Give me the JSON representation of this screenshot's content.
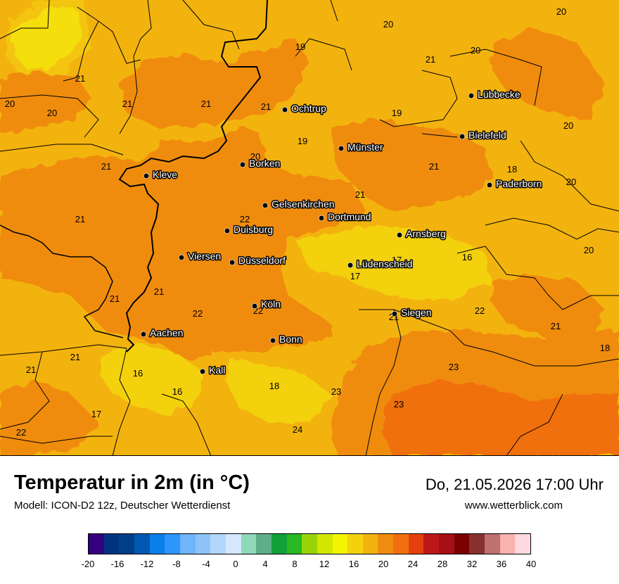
{
  "map": {
    "cities": [
      {
        "name": "Ochtrup"
      },
      {
        "name": "Lübbecke"
      },
      {
        "name": "Bielefeld"
      },
      {
        "name": "Münster"
      },
      {
        "name": "Borken"
      },
      {
        "name": "Kleve"
      },
      {
        "name": "Paderborn"
      },
      {
        "name": "Gelsenkirchen"
      },
      {
        "name": "Dortmund"
      },
      {
        "name": "Duisburg"
      },
      {
        "name": "Arnsberg"
      },
      {
        "name": "Viersen"
      },
      {
        "name": "Düsseldorf"
      },
      {
        "name": "Lüdenscheid"
      },
      {
        "name": "Köln"
      },
      {
        "name": "Siegen"
      },
      {
        "name": "Aachen"
      },
      {
        "name": "Bonn"
      },
      {
        "name": "Kall"
      }
    ],
    "temperature_labels": [
      "20",
      "20",
      "19",
      "20",
      "21",
      "21",
      "21",
      "20",
      "21",
      "20",
      "19",
      "19",
      "21",
      "21",
      "21",
      "20",
      "18",
      "20",
      "21",
      "22",
      "21",
      "20",
      "17",
      "16",
      "20",
      "17",
      "21",
      "21",
      "21",
      "22",
      "22",
      "21",
      "21",
      "22",
      "21",
      "18",
      "16",
      "21",
      "16",
      "18",
      "23",
      "23",
      "17",
      "23",
      "22",
      "24"
    ]
  },
  "footer": {
    "title": "Temperatur in 2m (in °C)",
    "model": "Modell: ICON-D2 12z, Deutscher Wetterdienst",
    "datetime": "Do, 21.05.2026 17:00 Uhr",
    "website": "www.wetterblick.com"
  },
  "colorbar": {
    "colors": [
      "#33007f",
      "#00337f",
      "#003f8a",
      "#0058b0",
      "#0a7fea",
      "#2e95fb",
      "#6fb5fb",
      "#8ec3f9",
      "#b3d6fb",
      "#d6e7fd",
      "#8fd9bb",
      "#5fae8a",
      "#12a03a",
      "#28b821",
      "#99d40a",
      "#d2e600",
      "#f4f400",
      "#f3d10c",
      "#f3b30e",
      "#f08c0f",
      "#f07010",
      "#e5400c",
      "#bd1818",
      "#a60f15",
      "#7b0000",
      "#8b3030",
      "#bf7070",
      "#f9b2ac",
      "#ffd9df"
    ],
    "tick_labels": [
      "-20",
      "-16",
      "-12",
      "-8",
      "-4",
      "0",
      "4",
      "8",
      "12",
      "16",
      "20",
      "24",
      "28",
      "32",
      "36",
      "40"
    ]
  }
}
